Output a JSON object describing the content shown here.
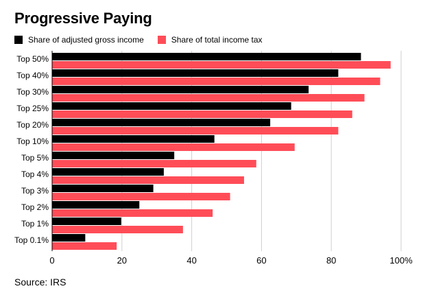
{
  "title": "Progressive Paying",
  "source": "Source: IRS",
  "colors": {
    "agi": "#000000",
    "tax": "#ff4d58",
    "grid": "#cfcfcf",
    "axis": "#000000"
  },
  "chart_data": {
    "type": "bar",
    "orientation": "horizontal",
    "categories": [
      "Top 50%",
      "Top 40%",
      "Top 30%",
      "Top 25%",
      "Top 20%",
      "Top 10%",
      "Top 5%",
      "Top 4%",
      "Top 3%",
      "Top 2%",
      "Top 1%",
      "Top 0.1%"
    ],
    "series": [
      {
        "name": "Share of adjusted gross income",
        "color": "#000000",
        "values": [
          88.5,
          82.0,
          73.5,
          68.5,
          62.5,
          46.5,
          35.0,
          32.0,
          29.0,
          25.0,
          19.8,
          9.5
        ]
      },
      {
        "name": "Share of total income tax",
        "color": "#ff4d58",
        "values": [
          97.0,
          94.0,
          89.5,
          86.0,
          82.0,
          69.5,
          58.5,
          55.0,
          51.0,
          46.0,
          37.5,
          18.5
        ]
      }
    ],
    "xlim": [
      0,
      100
    ],
    "xticks": [
      0,
      20,
      40,
      60,
      80,
      100
    ],
    "xtick_labels": [
      "0",
      "20",
      "40",
      "60",
      "80",
      "100%"
    ],
    "grid": true,
    "legend_position": "top-left"
  }
}
